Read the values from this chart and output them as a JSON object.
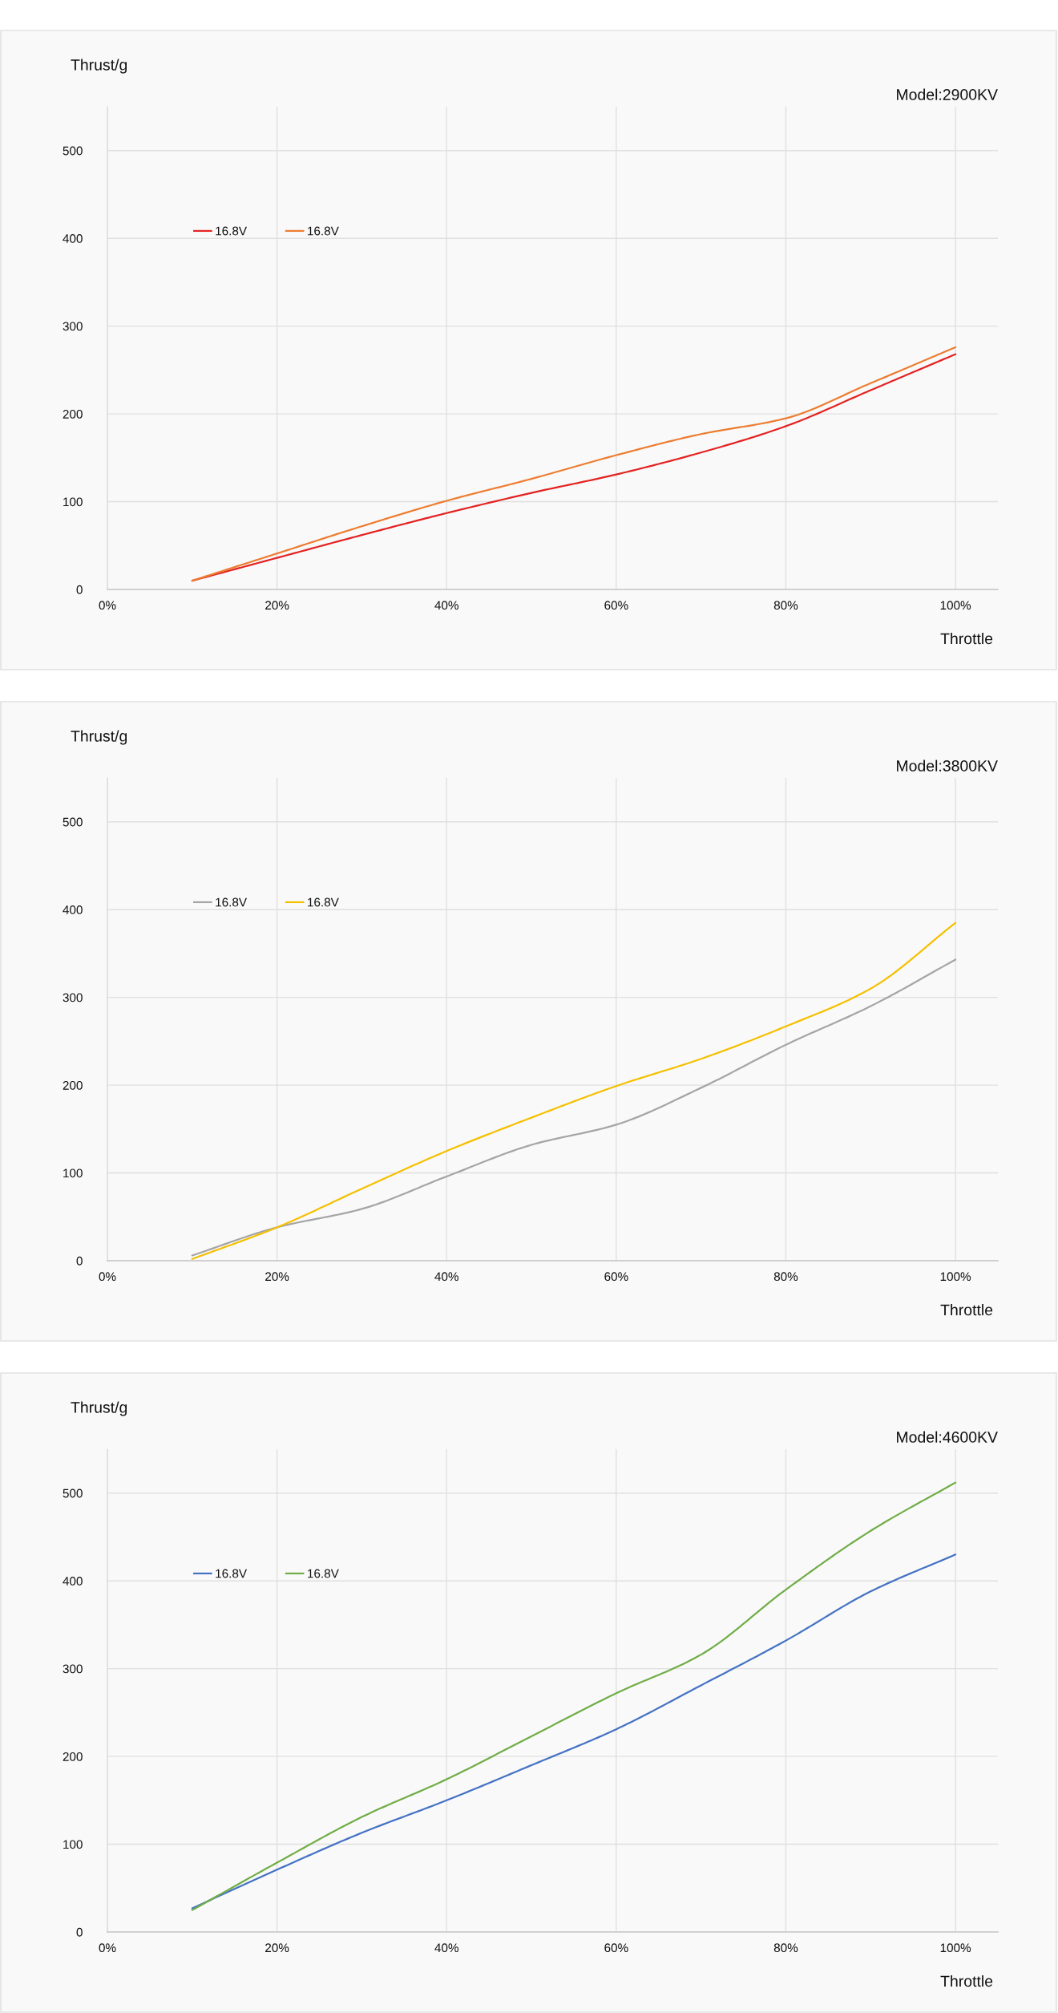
{
  "chart_data": [
    {
      "type": "line",
      "title": "Model:2900KV",
      "xlabel": "Throttle",
      "ylabel": "Thrust/g",
      "x": [
        10,
        20,
        30,
        40,
        50,
        60,
        70,
        80,
        90,
        100
      ],
      "xlim": [
        0,
        105
      ],
      "xticks": [
        {
          "value": 0,
          "label": "0%"
        },
        {
          "value": 20,
          "label": "20%"
        },
        {
          "value": 40,
          "label": "40%"
        },
        {
          "value": 60,
          "label": "60%"
        },
        {
          "value": 80,
          "label": "80%"
        },
        {
          "value": 100,
          "label": "100%"
        }
      ],
      "ylim": [
        0,
        550
      ],
      "yticks": [
        0,
        100,
        200,
        300,
        400,
        500
      ],
      "grid": true,
      "legend": "top left",
      "series": [
        {
          "name": "16.8V",
          "color": "#e32322",
          "values": [
            10,
            36,
            62,
            87,
            110,
            131,
            156,
            186,
            227,
            268
          ]
        },
        {
          "name": "16.8V",
          "color": "#ed7d31",
          "values": [
            10,
            41,
            72,
            101,
            126,
            153,
            177,
            195,
            235,
            276
          ]
        }
      ]
    },
    {
      "type": "line",
      "title": "Model:3800KV",
      "xlabel": "Throttle",
      "ylabel": "Thrust/g",
      "x": [
        10,
        20,
        30,
        40,
        50,
        60,
        70,
        80,
        90,
        100
      ],
      "xlim": [
        0,
        105
      ],
      "xticks": [
        {
          "value": 0,
          "label": "0%"
        },
        {
          "value": 20,
          "label": "20%"
        },
        {
          "value": 40,
          "label": "40%"
        },
        {
          "value": 60,
          "label": "60%"
        },
        {
          "value": 80,
          "label": "80%"
        },
        {
          "value": 100,
          "label": "100%"
        }
      ],
      "ylim": [
        0,
        550
      ],
      "yticks": [
        0,
        100,
        200,
        300,
        400,
        500
      ],
      "grid": true,
      "legend": "top left",
      "series": [
        {
          "name": "16.8V",
          "color": "#a5a5a5",
          "values": [
            6,
            38,
            59,
            96,
            132,
            155,
            197,
            246,
            290,
            343
          ]
        },
        {
          "name": "16.8V",
          "color": "#f5c000",
          "values": [
            2,
            38,
            82,
            125,
            163,
            199,
            230,
            267,
            310,
            385
          ]
        }
      ]
    },
    {
      "type": "line",
      "title": "Model:4600KV",
      "xlabel": "Throttle",
      "ylabel": "Thrust/g",
      "x": [
        10,
        20,
        30,
        40,
        50,
        60,
        70,
        80,
        90,
        100
      ],
      "xlim": [
        0,
        105
      ],
      "xticks": [
        {
          "value": 0,
          "label": "0%"
        },
        {
          "value": 20,
          "label": "20%"
        },
        {
          "value": 40,
          "label": "40%"
        },
        {
          "value": 60,
          "label": "60%"
        },
        {
          "value": 80,
          "label": "80%"
        },
        {
          "value": 100,
          "label": "100%"
        }
      ],
      "ylim": [
        0,
        550
      ],
      "yticks": [
        0,
        100,
        200,
        300,
        400,
        500
      ],
      "grid": true,
      "legend": "top left",
      "series": [
        {
          "name": "16.8V",
          "color": "#4472c4",
          "values": [
            27,
            71,
            113,
            150,
            190,
            231,
            281,
            332,
            388,
            430
          ]
        },
        {
          "name": "16.8V",
          "color": "#70ad47",
          "values": [
            25,
            79,
            131,
            174,
            223,
            272,
            316,
            390,
            457,
            512
          ]
        }
      ]
    }
  ]
}
